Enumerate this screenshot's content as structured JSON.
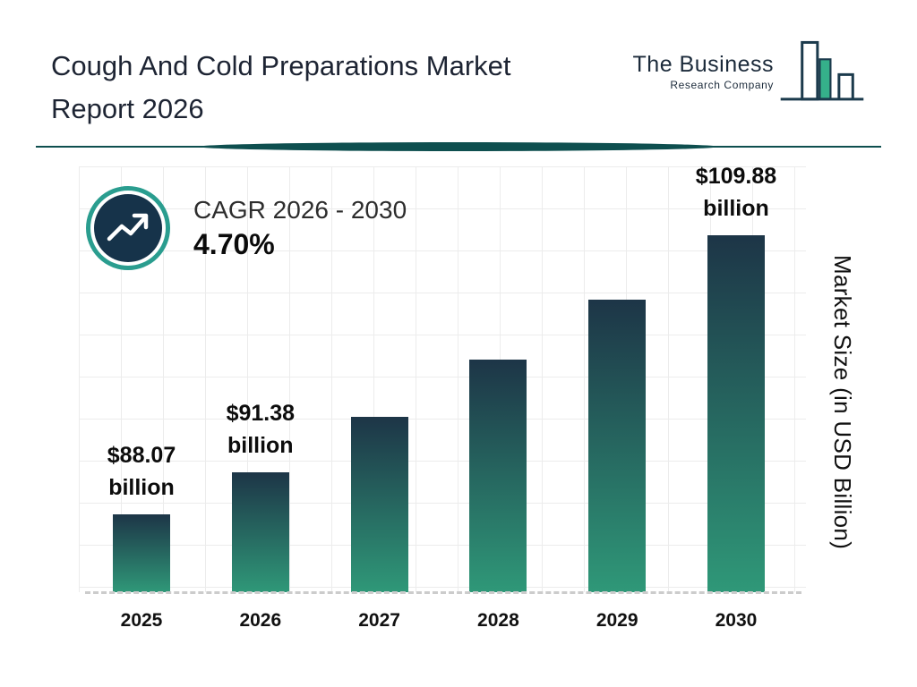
{
  "header": {
    "title_line1": "Cough And Cold Preparations Market",
    "title_line2": "Report 2026",
    "logo": {
      "line1": "The Business",
      "line2": "Research Company"
    }
  },
  "cagr": {
    "label": "CAGR 2026 - 2030",
    "value": "4.70%"
  },
  "chart_data": {
    "type": "bar",
    "title": "Cough And Cold Preparations Market Report 2026",
    "categories": [
      "2025",
      "2026",
      "2027",
      "2028",
      "2029",
      "2030"
    ],
    "values": [
      88.07,
      91.38,
      95.67,
      100.17,
      104.88,
      109.88
    ],
    "bar_labels": [
      {
        "line1": "$88.07",
        "line2": "billion"
      },
      {
        "line1": "$91.38",
        "line2": "billion"
      },
      null,
      null,
      null,
      {
        "line1": "$109.88",
        "line2": "billion"
      }
    ],
    "xlabel": "",
    "ylabel": "Market Size (in USD Billion)",
    "ylim": [
      82,
      115
    ],
    "grid": true,
    "legend": false,
    "unit": "USD Billion"
  },
  "colors": {
    "bar_gradient_top": "#1d3547",
    "bar_gradient_bottom": "#2f9878",
    "accent_teal": "#2a9d8f",
    "logo_teal": "#35b08a",
    "navy": "#16334a",
    "divider_teal": "#0e4f4f"
  }
}
